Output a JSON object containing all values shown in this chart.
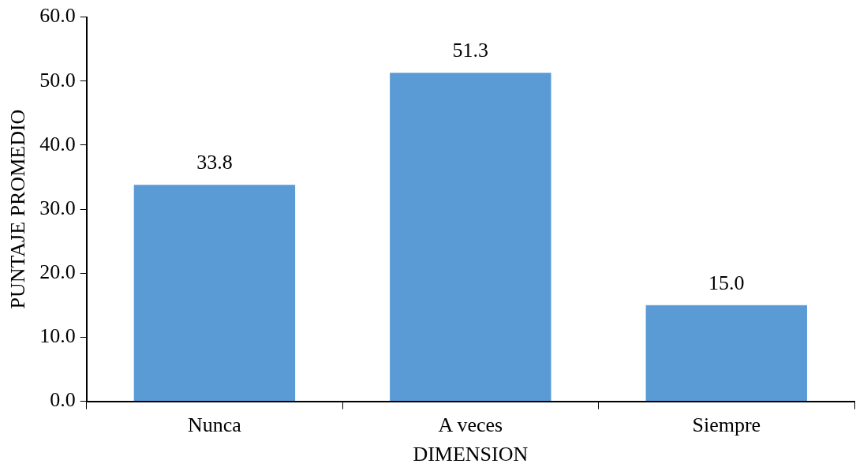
{
  "chart_data": {
    "type": "bar",
    "xlabel": "DIMENSION",
    "ylabel": "PUNTAJE PROMEDIO",
    "categories": [
      "Nunca",
      "A veces",
      "Siempre"
    ],
    "values": [
      33.8,
      51.3,
      15.0
    ],
    "color": "#5b9bd5",
    "value_labels": [
      "33.8",
      "51.3",
      "15.0"
    ],
    "ylim": [
      0,
      60
    ],
    "yticks": [
      {
        "value": 0,
        "label": "0.0"
      },
      {
        "value": 10,
        "label": "10.0"
      },
      {
        "value": 20,
        "label": "20.0"
      },
      {
        "value": 30,
        "label": "30.0"
      },
      {
        "value": 40,
        "label": "40.0"
      },
      {
        "value": 50,
        "label": "50.0"
      },
      {
        "value": 60,
        "label": "60.0"
      }
    ],
    "grid": false,
    "legend": false
  }
}
